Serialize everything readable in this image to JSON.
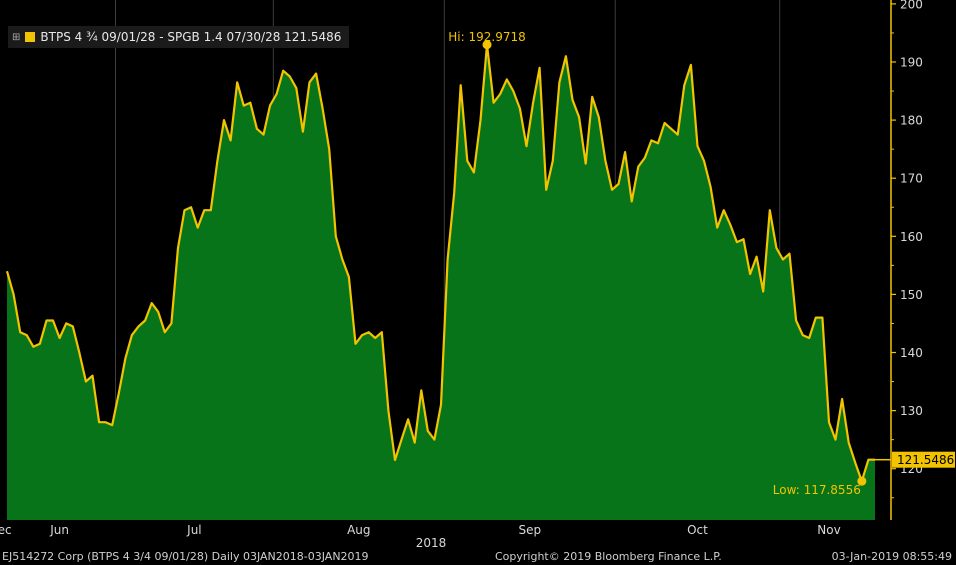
{
  "legend": {
    "text": "BTPS 4 ¾ 09/01/28 - SPGB 1.4 07/30/28 121.5486",
    "expand_icon": "expand-icon",
    "series_icon": "line-swatch-icon",
    "settings_icon": "chart-settings-icon"
  },
  "footer": {
    "left": "EJ514272 Corp (BTPS 4 3/4 09/01/28)  Daily 03JAN2018-03JAN2019",
    "middle": "Copyright© 2019 Bloomberg Finance L.P.",
    "right": "03-Jan-2019 08:55:49"
  },
  "colors": {
    "line": "#f2c300",
    "fill": "#07741a",
    "background": "#000000",
    "axis": "#f2c300",
    "grid": "#3c3c3c",
    "tick_text": "#d9d9d9",
    "last_price_label_bg": "#f2c300",
    "last_price_label_text": "#000000"
  },
  "chart_data": {
    "type": "area",
    "xlabel": "2018",
    "ylabel": "",
    "ylim": [
      110,
      200
    ],
    "yticks": [
      120,
      130,
      140,
      150,
      160,
      170,
      180,
      190,
      200
    ],
    "month_labels": [
      "Jun",
      "Jul",
      "Aug",
      "Sep",
      "Oct",
      "Nov",
      "Dec"
    ],
    "year_label": "2018",
    "grid": "vertical month separators",
    "high": {
      "label": "Hi: 192.9718",
      "value": 192.9718
    },
    "low": {
      "label": "Low: 117.8556",
      "value": 117.8556
    },
    "last_value_label": "121.5486",
    "last_value": 121.5486,
    "months": [
      {
        "name": "Jun",
        "values": [
          154,
          150,
          143.5,
          143,
          141,
          141.5,
          145.5,
          145.5,
          142.5,
          145,
          144.5,
          140,
          135,
          136,
          128,
          128,
          127.5
        ]
      },
      {
        "name": "Jul",
        "values": [
          133,
          139,
          143,
          144.5,
          145.5,
          148.5,
          147,
          143.5,
          145,
          158,
          164.5,
          165,
          161.5,
          164.5,
          164.5,
          173,
          180,
          176.5,
          186.5,
          182.5,
          183,
          178.5,
          177.5,
          182.5
        ]
      },
      {
        "name": "Aug",
        "values": [
          184.5,
          188.5,
          187.5,
          185.5,
          178,
          186.5,
          188,
          182,
          175,
          160,
          156,
          153,
          141.5,
          143,
          143.5,
          142.5,
          143.5,
          130,
          121.5,
          125,
          128.5,
          124.5,
          133.5,
          126.5,
          125,
          131
        ]
      },
      {
        "name": "Sep",
        "values": [
          156,
          167.5,
          186,
          173,
          171,
          180,
          192.9718,
          183,
          184.5,
          187,
          185,
          182,
          175.5,
          183,
          189,
          168,
          173,
          186.5,
          191,
          183.5,
          180.5,
          172.5,
          184,
          180.5,
          173,
          168
        ]
      },
      {
        "name": "Oct",
        "values": [
          169,
          174.5,
          166,
          172,
          173.5,
          176.5,
          176,
          179.5,
          178.5,
          177.5,
          186,
          189.5,
          175.5,
          173,
          168.5,
          161.5,
          164.5,
          162,
          159,
          159.5,
          153.5,
          156.5,
          150.5,
          164.5,
          158
        ]
      },
      {
        "name": "Nov",
        "values": [
          156,
          157,
          145.5,
          143,
          142.5,
          146,
          146,
          128,
          125,
          132,
          124.5,
          121,
          117.8556,
          121.5486,
          121.5486
        ]
      }
    ]
  }
}
